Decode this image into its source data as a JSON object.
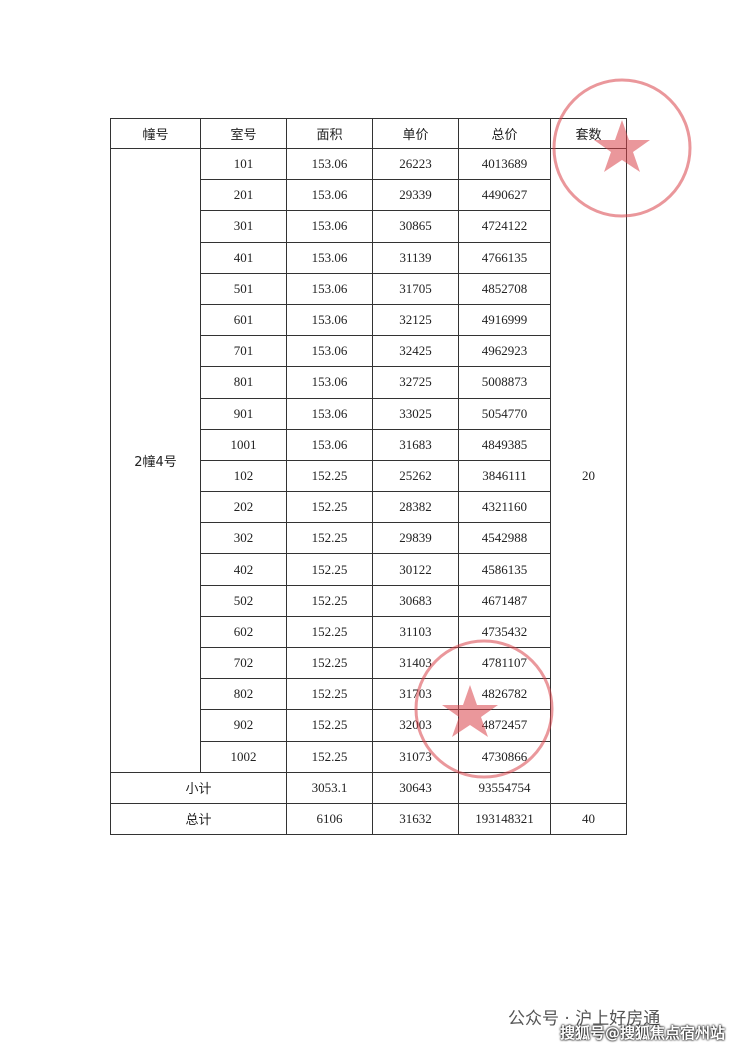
{
  "table": {
    "headers": [
      "幢号",
      "室号",
      "面积",
      "单价",
      "总价",
      "套数"
    ],
    "building": "2幢4号",
    "sets": "20",
    "rows": [
      [
        "101",
        "153.06",
        "26223",
        "4013689"
      ],
      [
        "201",
        "153.06",
        "29339",
        "4490627"
      ],
      [
        "301",
        "153.06",
        "30865",
        "4724122"
      ],
      [
        "401",
        "153.06",
        "31139",
        "4766135"
      ],
      [
        "501",
        "153.06",
        "31705",
        "4852708"
      ],
      [
        "601",
        "153.06",
        "32125",
        "4916999"
      ],
      [
        "701",
        "153.06",
        "32425",
        "4962923"
      ],
      [
        "801",
        "153.06",
        "32725",
        "5008873"
      ],
      [
        "901",
        "153.06",
        "33025",
        "5054770"
      ],
      [
        "1001",
        "153.06",
        "31683",
        "4849385"
      ],
      [
        "102",
        "152.25",
        "25262",
        "3846111"
      ],
      [
        "202",
        "152.25",
        "28382",
        "4321160"
      ],
      [
        "302",
        "152.25",
        "29839",
        "4542988"
      ],
      [
        "402",
        "152.25",
        "30122",
        "4586135"
      ],
      [
        "502",
        "152.25",
        "30683",
        "4671487"
      ],
      [
        "602",
        "152.25",
        "31103",
        "4735432"
      ],
      [
        "702",
        "152.25",
        "31403",
        "4781107"
      ],
      [
        "802",
        "152.25",
        "31703",
        "4826782"
      ],
      [
        "902",
        "152.25",
        "32003",
        "4872457"
      ],
      [
        "1002",
        "152.25",
        "31073",
        "4730866"
      ]
    ],
    "subtotal": {
      "label": "小计",
      "area": "3053.1",
      "unit_price": "30643",
      "total": "93554754"
    },
    "grand_total": {
      "label": "总计",
      "area": "6106",
      "unit_price": "31632",
      "total": "193148321",
      "sets": "40"
    }
  },
  "watermark": {
    "account": "公众号 · 沪上好房通",
    "source": "搜狐号@搜狐焦点宿州站"
  }
}
